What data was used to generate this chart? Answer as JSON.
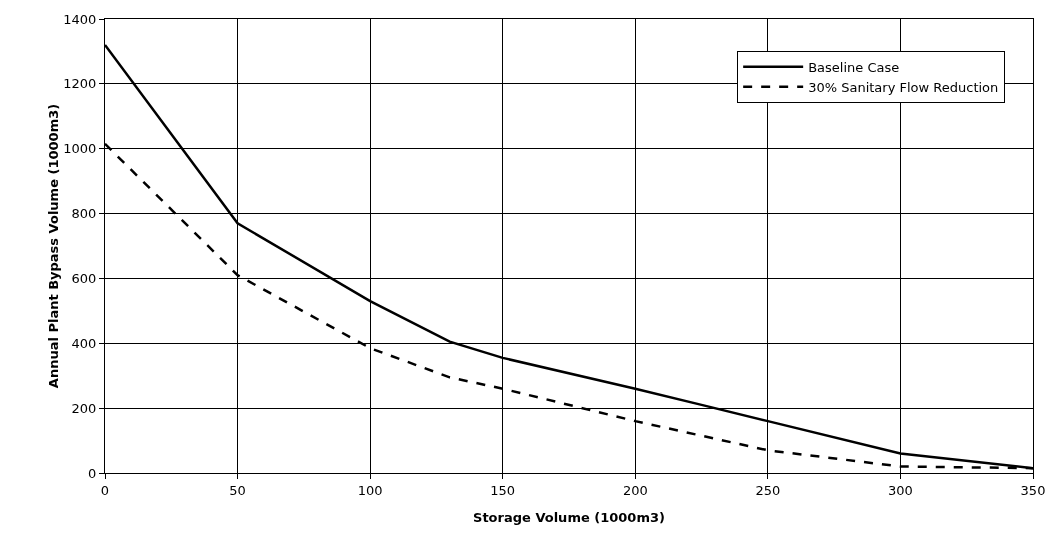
{
  "chart_data": {
    "type": "line",
    "xlabel": "Storage Volume (1000m3)",
    "ylabel": "Annual Plant Bypass Volume (1000m3)",
    "xlim": [
      0,
      350
    ],
    "xticks": [
      0,
      50,
      100,
      150,
      200,
      250,
      300,
      350
    ],
    "ylim": [
      0,
      1400
    ],
    "yticks": [
      0,
      200,
      400,
      600,
      800,
      1000,
      1200,
      1400
    ],
    "grid": true,
    "legend": "top right",
    "marker": "none",
    "series": [
      {
        "name": "Baseline Case",
        "color": "#000000",
        "line_style": "solid",
        "x": [
          0,
          50,
          100,
          130,
          150,
          200,
          225,
          250,
          300,
          350
        ],
        "values": [
          1320,
          770,
          530,
          405,
          355,
          260,
          210,
          160,
          60,
          15
        ]
      },
      {
        "name": "30% Sanitary Flow Reduction",
        "color": "#000000",
        "line_style": "dashed",
        "x": [
          0,
          50,
          100,
          130,
          150,
          200,
          250,
          300,
          350
        ],
        "values": [
          1015,
          610,
          385,
          295,
          260,
          160,
          70,
          20,
          15
        ]
      }
    ]
  }
}
